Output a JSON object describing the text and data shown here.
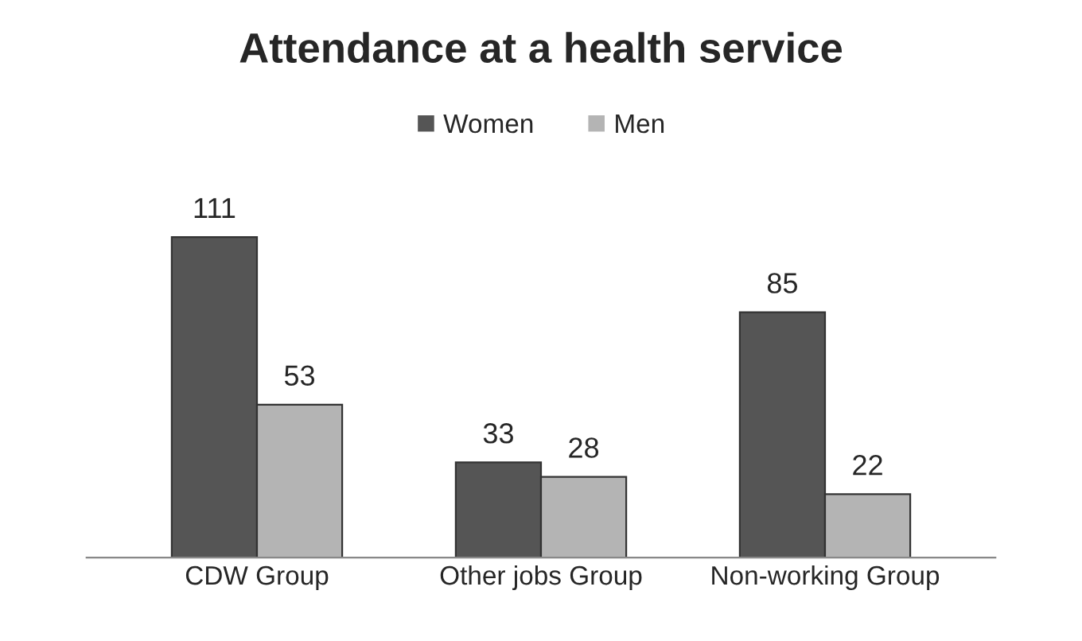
{
  "chart_data": {
    "type": "bar",
    "title": "Attendance at a health service",
    "categories": [
      "CDW Group",
      "Other jobs Group",
      "Non-working Group"
    ],
    "series": [
      {
        "name": "Women",
        "color": "#555555",
        "values": [
          111,
          33,
          85
        ]
      },
      {
        "name": "Men",
        "color": "#b4b4b4",
        "values": [
          53,
          28,
          22
        ]
      }
    ],
    "data_labels": true,
    "legend": "top",
    "grid": false,
    "tick_labels": "x"
  }
}
